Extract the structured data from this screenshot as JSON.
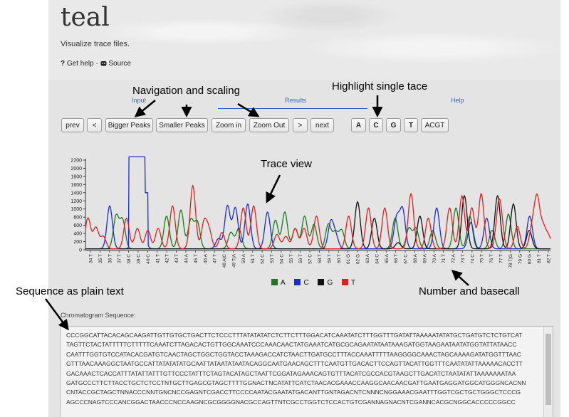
{
  "header": {
    "title": "teal",
    "subtitle": "Visualize trace files.",
    "help_icon": "question-icon",
    "help_label": "Get help",
    "separator": "·",
    "source_icon": "github-icon",
    "source_label": "Source"
  },
  "tabs": [
    {
      "label": "Input"
    },
    {
      "label": "Results"
    },
    {
      "label": "Help"
    }
  ],
  "toolbar": {
    "prev": "prev",
    "back": "<",
    "bigger": "Bigger Peaks",
    "smaller": "Smaller Peaks",
    "zoom_in": "Zoom in",
    "zoom_out": "Zoom Out",
    "forward": ">",
    "next": "next",
    "base_a": "A",
    "base_c": "C",
    "base_g": "G",
    "base_t": "T",
    "all": "ACGT"
  },
  "chart_data": {
    "type": "line",
    "ylim": [
      0,
      2300
    ],
    "yticks": [
      "0",
      "200",
      "400",
      "600",
      "800",
      "1000",
      "1200",
      "1400",
      "1600",
      "1800",
      "2000",
      "2200"
    ],
    "base_labels": [
      "34 T",
      "35 T",
      "36 T",
      "37 T",
      "38 C",
      "39 C",
      "40 C",
      "41 T",
      "42 T",
      "43 T",
      "44 A",
      "45 T",
      "46 A",
      "47 T",
      "48 A|C",
      "49 T|A",
      "50 A",
      "51 T",
      "52 C",
      "53 T",
      "54 C",
      "55 T",
      "56 T",
      "57 C",
      "58 T",
      "59 T",
      "60 T",
      "61 G",
      "62 G",
      "63 A",
      "64 C",
      "65 A",
      "66 T",
      "67 C",
      "68 A",
      "69 A",
      "70 A",
      "71 T",
      "72 A",
      "73 T",
      "74 C",
      "75 T",
      "76 T",
      "77 T",
      "78 T|G",
      "79 G",
      "80 G",
      "81 T",
      "82 T"
    ],
    "series": [
      {
        "name": "A",
        "color": "#1a7a1a",
        "peaks": [
          [
            6.2,
            800
          ],
          [
            7.5,
            700
          ],
          [
            16.4,
            800
          ],
          [
            19.3,
            950
          ],
          [
            21.3,
            700
          ],
          [
            22.6,
            650
          ],
          [
            29.4,
            400
          ],
          [
            31.0,
            500
          ],
          [
            38.4,
            700
          ],
          [
            40.3,
            900
          ],
          [
            42.4,
            500
          ],
          [
            44.3,
            800
          ],
          [
            46.2,
            600
          ],
          [
            49.1,
            600
          ],
          [
            50.5,
            400
          ],
          [
            51.8,
            450
          ],
          [
            62.6,
            750
          ],
          [
            65.4,
            500
          ],
          [
            66.8,
            500
          ],
          [
            70.2,
            450
          ],
          [
            74.9,
            1000
          ],
          [
            77.7,
            800
          ],
          [
            82.2,
            450
          ],
          [
            85.5,
            850
          ]
        ]
      },
      {
        "name": "C",
        "color": "#1a2bd6",
        "peaks": [
          [
            4.9,
            1050
          ],
          [
            10.1,
            1050
          ],
          [
            11.7,
            400
          ],
          [
            26.9,
            250
          ],
          [
            28.7,
            1050
          ],
          [
            30.3,
            1000
          ],
          [
            32.8,
            1100
          ],
          [
            36.8,
            900
          ],
          [
            49.6,
            650
          ],
          [
            50.6,
            300
          ],
          [
            62.9,
            750
          ],
          [
            64.1,
            950
          ],
          [
            71.0,
            1000
          ],
          [
            77.9,
            650
          ],
          [
            81.1,
            750
          ],
          [
            89.8,
            800
          ]
        ]
      },
      {
        "name": "G",
        "color": "#111111",
        "peaks": [
          [
            55.0,
            1150
          ],
          [
            58.4,
            750
          ],
          [
            63.2,
            150
          ],
          [
            67.6,
            800
          ],
          [
            76.6,
            1300
          ],
          [
            83.3,
            1300
          ],
          [
            86.5,
            1100
          ],
          [
            89.7,
            450
          ]
        ]
      },
      {
        "name": "T",
        "color": "#e01f1f",
        "peaks": [
          [
            0.5,
            750
          ],
          [
            2.1,
            520
          ],
          [
            3.6,
            300
          ],
          [
            8.3,
            750
          ],
          [
            10.5,
            500
          ],
          [
            12.6,
            450
          ],
          [
            14.7,
            500
          ],
          [
            17.6,
            1050
          ],
          [
            21.7,
            1550
          ],
          [
            24.0,
            650
          ],
          [
            25.0,
            420
          ],
          [
            27.6,
            400
          ],
          [
            31.9,
            1000
          ],
          [
            34.0,
            1050
          ],
          [
            38.7,
            350
          ],
          [
            40.5,
            300
          ],
          [
            42.4,
            500
          ],
          [
            44.2,
            500
          ],
          [
            46.7,
            800
          ],
          [
            53.2,
            800
          ],
          [
            57.2,
            1000
          ],
          [
            60.5,
            1000
          ],
          [
            65.8,
            1350
          ],
          [
            69.3,
            750
          ],
          [
            73.6,
            1000
          ],
          [
            76.1,
            1300
          ],
          [
            78.1,
            1000
          ],
          [
            80.0,
            1350
          ],
          [
            83.5,
            850
          ],
          [
            84.0,
            500
          ],
          [
            87.3,
            550
          ],
          [
            90.3,
            500
          ],
          [
            91.3,
            1200
          ],
          [
            92.5,
            500
          ],
          [
            93.6,
            300
          ]
        ]
      }
    ],
    "legend": [
      {
        "label": "A",
        "color": "#1a7a1a"
      },
      {
        "label": "C",
        "color": "#1a2bd6"
      },
      {
        "label": "G",
        "color": "#111111"
      },
      {
        "label": "T",
        "color": "#e01f1f"
      }
    ]
  },
  "sequence": {
    "label": "Chromatogram Sequence:",
    "lines": [
      "CCCGGCATTACACAGCAAGATTGTTGTGCTGACTTCTCCCTTTATATATATCTCTTCTTTGGACATCAAATATCTTTGGTTTGATATTAAAAATATATGCTGATGTCTCTGTCAT",
      "TAGTTCTACTATTTTTCTTTTTCAAATCTTAGACACTGTTGGCAAATCCCAAACAACTATGAAATCATGCGCAGAATATAATAAAGATGGTAAGAATAATATGGTATTATAACC",
      "CAATTTGGTGTCCATACACGATGTCAACTAGCTGGCTGGTACCTAAAGACCATCTAACTTGATGCCTTTACCAAATTTTTAAGGGGCAAACTAGCAAAAGATATGGTTTAAC",
      "GTTTAACAAAGGCTAATGCCATTATATATATGCAATTATAATATAATACAGGCAATGAACAGCTTTCAATGTTGACACTTCCAGTTACATTGGTTTCAATATATTAAAAACACCTT",
      "GACAAACTCACCATTTATATTATTTGTTCCCTATTTCTAGTACATAGCTAATTCGGATAGAAACAGTGTTTACATCGCCACGTAAGCTTGACATCTAATATATTAAAAAAATAA",
      "GATGCCCTTCTTACCTGCTCTCCTNTGCTTGAGCGTAGCTTTTGGNACTNCATATTCATCTAACACGAAACCAAGGCAACAACGATTGAATGAGGATGGCATGGGNCACNN",
      "CNTACCGCTAGCTNNACCCNNTGNCNCCGAGNTCGACCTTCCCCAATACGAATATGACANTTGNTAGACNTCNNNCNGGAAACGAATTTGGTCGCTGCTGGGCTCCCG",
      "AGCCCNAGTCCCANCGGACTAACCCNCCAAGNCGCGGGGNACGCCAGTTNTCGCCTGGTCTCCACTGTCGANNAGNACNTCGANNCACGCNGGCACCCCCGGCC"
    ]
  },
  "annotations": {
    "navigation": "Navigation and scaling",
    "highlight": "Highlight single tace",
    "trace": "Trace view",
    "sequence": "Sequence as plain text",
    "number": "Number and basecall"
  }
}
